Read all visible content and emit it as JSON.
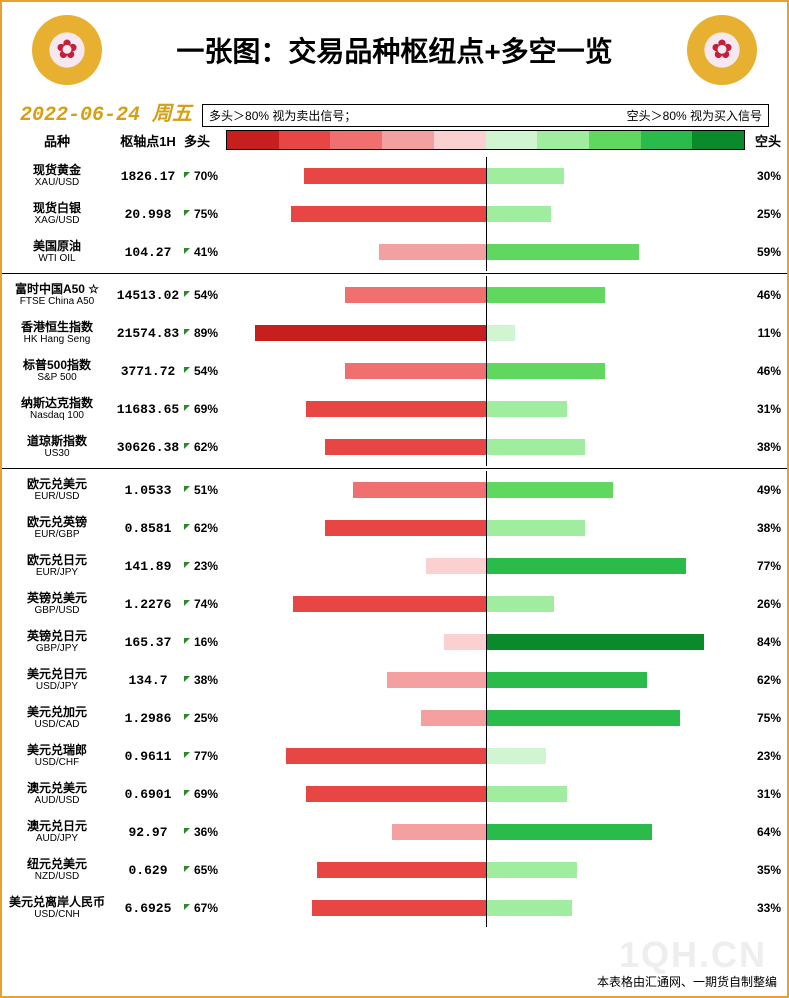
{
  "title": "一张图：交易品种枢纽点+多空一览",
  "date": "2022-06-24 周五",
  "legend_left": "多头＞80% 视为卖出信号；",
  "legend_right": "空头＞80% 视为买入信号",
  "headers": {
    "name": "品种",
    "pivot": "枢轴点1H",
    "long": "多头",
    "short": "空头"
  },
  "gradient_colors": [
    "#c71e1e",
    "#e84545",
    "#f07070",
    "#f5a0a0",
    "#fad0d0",
    "#d0f5d0",
    "#a0eda0",
    "#60d860",
    "#2bbb4a",
    "#0a8a2a"
  ],
  "footer": "本表格由汇通网、一期货自制整编",
  "watermark": "1QH.CN",
  "groups": [
    {
      "rows": [
        {
          "name": "现货黄金",
          "sub": "XAU/USD",
          "pivot": "1826.17",
          "long": 70,
          "short": 30
        },
        {
          "name": "现货白银",
          "sub": "XAG/USD",
          "pivot": "20.998",
          "long": 75,
          "short": 25
        },
        {
          "name": "美国原油",
          "sub": "WTI OIL",
          "pivot": "104.27",
          "long": 41,
          "short": 59
        }
      ]
    },
    {
      "rows": [
        {
          "name": "富时中国A50 ☆",
          "sub": "FTSE China A50",
          "pivot": "14513.02",
          "long": 54,
          "short": 46
        },
        {
          "name": "香港恒生指数",
          "sub": "HK Hang Seng",
          "pivot": "21574.83",
          "long": 89,
          "short": 11
        },
        {
          "name": "标普500指数",
          "sub": "S&P 500",
          "pivot": "3771.72",
          "long": 54,
          "short": 46
        },
        {
          "name": "纳斯达克指数",
          "sub": "Nasdaq 100",
          "pivot": "11683.65",
          "long": 69,
          "short": 31
        },
        {
          "name": "道琼斯指数",
          "sub": "US30",
          "pivot": "30626.38",
          "long": 62,
          "short": 38
        }
      ]
    },
    {
      "rows": [
        {
          "name": "欧元兑美元",
          "sub": "EUR/USD",
          "pivot": "1.0533",
          "long": 51,
          "short": 49
        },
        {
          "name": "欧元兑英镑",
          "sub": "EUR/GBP",
          "pivot": "0.8581",
          "long": 62,
          "short": 38
        },
        {
          "name": "欧元兑日元",
          "sub": "EUR/JPY",
          "pivot": "141.89",
          "long": 23,
          "short": 77
        },
        {
          "name": "英镑兑美元",
          "sub": "GBP/USD",
          "pivot": "1.2276",
          "long": 74,
          "short": 26
        },
        {
          "name": "英镑兑日元",
          "sub": "GBP/JPY",
          "pivot": "165.37",
          "long": 16,
          "short": 84
        },
        {
          "name": "美元兑日元",
          "sub": "USD/JPY",
          "pivot": "134.7",
          "long": 38,
          "short": 62
        },
        {
          "name": "美元兑加元",
          "sub": "USD/CAD",
          "pivot": "1.2986",
          "long": 25,
          "short": 75
        },
        {
          "name": "美元兑瑞郎",
          "sub": "USD/CHF",
          "pivot": "0.9611",
          "long": 77,
          "short": 23
        },
        {
          "name": "澳元兑美元",
          "sub": "AUD/USD",
          "pivot": "0.6901",
          "long": 69,
          "short": 31
        },
        {
          "name": "澳元兑日元",
          "sub": "AUD/JPY",
          "pivot": "92.97",
          "long": 36,
          "short": 64
        },
        {
          "name": "纽元兑美元",
          "sub": "NZD/USD",
          "pivot": "0.629",
          "long": 65,
          "short": 35
        },
        {
          "name": "美元兑离岸人民币",
          "sub": "USD/CNH",
          "pivot": "6.6925",
          "long": 67,
          "short": 33
        }
      ]
    }
  ]
}
